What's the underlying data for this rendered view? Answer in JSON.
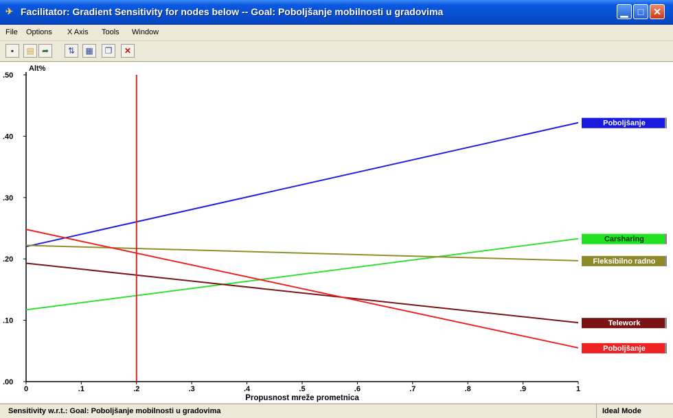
{
  "window": {
    "title": "Facilitator: Gradient Sensitivity for nodes below -- Goal: Poboljšanje mobilnosti u gradovima",
    "minimize_glyph": "▁",
    "maximize_glyph": "□",
    "close_glyph": "✕"
  },
  "menu": {
    "items": [
      "File",
      "Options",
      "X Axis",
      "Tools",
      "Window"
    ]
  },
  "toolbar": {
    "icons": [
      "print-icon",
      "open-icon",
      "export-icon",
      "swap-axis-icon",
      "chart-icon",
      "copy-icon",
      "close-red-icon"
    ]
  },
  "chart_data": {
    "type": "line",
    "ylabel": "Alt%",
    "xlabel": "Propusnost mreže prometnica",
    "xlim": [
      0,
      1
    ],
    "ylim": [
      0,
      0.5
    ],
    "x_ticks": [
      "0",
      ".1",
      ".2",
      ".3",
      ".4",
      ".5",
      ".6",
      ".7",
      ".8",
      ".9",
      "1"
    ],
    "y_ticks": [
      ".00",
      ".10",
      ".20",
      ".30",
      ".40",
      ".50"
    ],
    "current_value": 0.2,
    "current_value_color": "#e02020",
    "series": [
      {
        "name": "Poboljšanje",
        "color": "#2020e0",
        "label_color": "#1a1adf",
        "label_text_color": "#ffffff",
        "x": [
          0,
          1
        ],
        "y": [
          0.22,
          0.422
        ]
      },
      {
        "name": "Carsharing",
        "color": "#33dd33",
        "label_color": "#22e022",
        "label_text_color": "#003300",
        "x": [
          0,
          1
        ],
        "y": [
          0.117,
          0.233
        ]
      },
      {
        "name": "Fleksibilno radno",
        "color": "#8f8f2a",
        "label_color": "#8c8a2a",
        "label_text_color": "#ffffff",
        "x": [
          0,
          1
        ],
        "y": [
          0.222,
          0.197
        ]
      },
      {
        "name": "Telework",
        "color": "#7a1515",
        "label_color": "#7a1414",
        "label_text_color": "#ffffff",
        "x": [
          0,
          1
        ],
        "y": [
          0.193,
          0.096
        ]
      },
      {
        "name": "Poboljšanje",
        "color": "#ee2020",
        "label_color": "#ee2222",
        "label_text_color": "#ffffff",
        "x": [
          0,
          1
        ],
        "y": [
          0.248,
          0.055
        ]
      }
    ],
    "grid": false,
    "legend": "right, at line ends"
  },
  "status": {
    "left": "Sensitivity w.r.t.: Goal: Poboljšanje mobilnosti u gradovima",
    "right": "Ideal Mode"
  }
}
